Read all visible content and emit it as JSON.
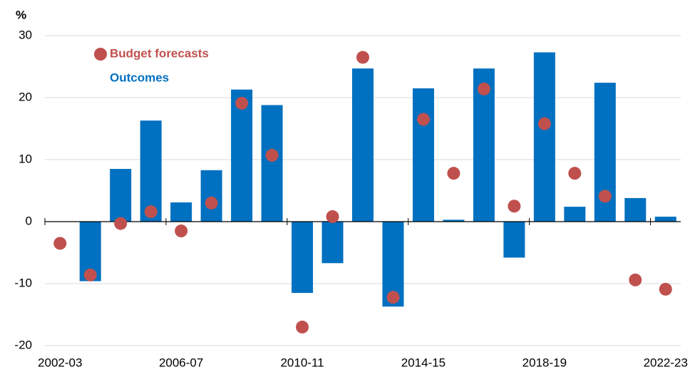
{
  "chart_data": {
    "type": "bar",
    "y_label": "%",
    "categories": [
      "2002-03",
      null,
      null,
      null,
      "2006-07",
      null,
      null,
      null,
      "2010-11",
      null,
      null,
      null,
      "2014-15",
      null,
      null,
      null,
      "2018-19",
      null,
      null,
      null,
      "2022-23"
    ],
    "series": [
      {
        "name": "Budget forecasts",
        "color": "#c0504d",
        "type": "scatter",
        "values": [
          -3.5,
          -8.6,
          -0.3,
          1.6,
          -1.5,
          3.0,
          19.1,
          10.7,
          -17.0,
          0.8,
          26.5,
          -12.2,
          16.5,
          7.8,
          21.4,
          2.5,
          15.8,
          7.8,
          4.1,
          -9.4,
          -10.9
        ]
      },
      {
        "name": "Outcomes",
        "color": "#0070c0",
        "type": "bar",
        "values": [
          null,
          -9.6,
          8.5,
          16.3,
          3.1,
          8.3,
          21.3,
          18.8,
          -11.5,
          -6.7,
          24.7,
          -13.7,
          21.5,
          0.3,
          24.7,
          -5.8,
          27.3,
          2.4,
          22.4,
          3.8,
          0.8
        ]
      }
    ],
    "ylim": [
      -20,
      30
    ],
    "yticks": [
      -20,
      -10,
      0,
      10,
      20,
      30
    ],
    "grid": true
  }
}
